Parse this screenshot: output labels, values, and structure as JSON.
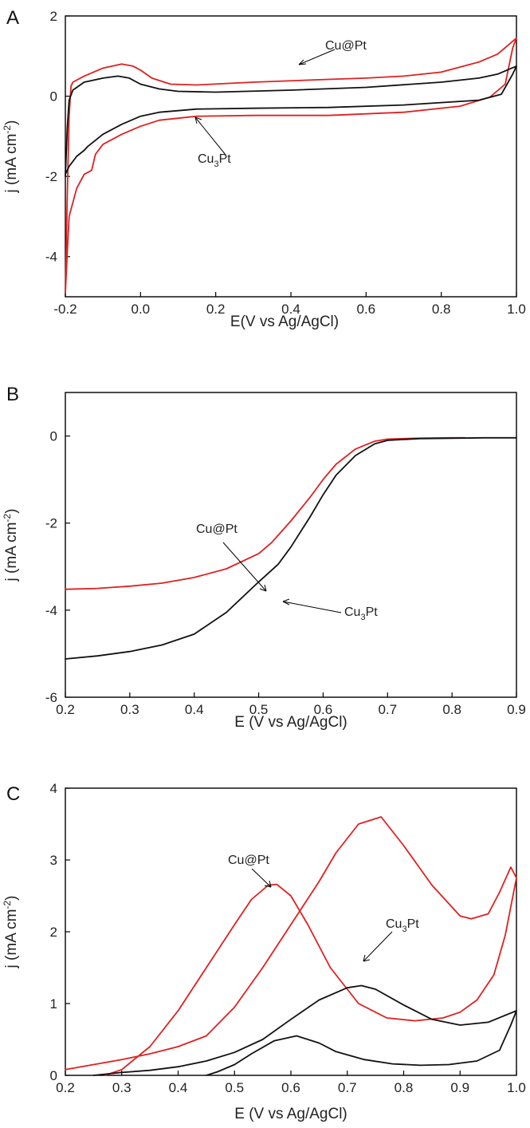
{
  "colors": {
    "Cu@Pt": "#e02020",
    "Cu3Pt": "#111111"
  },
  "chart_data": [
    {
      "type": "line",
      "panel": "A",
      "xlabel": "E(V vs Ag/AgCl)",
      "ylabel": "j (mA cm⁻²)",
      "xlim": [
        -0.2,
        1.0
      ],
      "ylim": [
        -5,
        2
      ],
      "xticks": [
        "-0.2",
        "0.0",
        "0.2",
        "0.4",
        "0.6",
        "0.8",
        "1.0"
      ],
      "xtick_values": [
        -0.2,
        0.0,
        0.2,
        0.4,
        0.6,
        0.8,
        1.0
      ],
      "yticks": [
        "-4",
        "-2",
        "0",
        "2"
      ],
      "ytick_values": [
        -4,
        -2,
        0,
        2
      ],
      "annotations": [
        {
          "text": "Cu@Pt",
          "series": "Cu@Pt",
          "at": [
            0.45,
            0.43
          ],
          "text_at": [
            0.62,
            1.32
          ]
        },
        {
          "text_main": "Cu",
          "text_sub": "3",
          "text_tail": "Pt",
          "series": "Cu3Pt",
          "at": [
            0.14,
            -0.3
          ],
          "text_at": [
            0.25,
            -1.35
          ]
        }
      ],
      "series": [
        {
          "name": "Cu@Pt",
          "color": "#e02020",
          "x": [
            -0.2,
            -0.195,
            -0.19,
            -0.185,
            -0.18,
            -0.15,
            -0.1,
            -0.05,
            -0.02,
            0.0,
            0.03,
            0.08,
            0.15,
            0.3,
            0.5,
            0.6,
            0.7,
            0.8,
            0.9,
            0.95,
            1.0,
            0.99,
            0.97,
            0.93,
            0.85,
            0.7,
            0.5,
            0.3,
            0.15,
            0.05,
            0.0,
            -0.05,
            -0.1,
            -0.12,
            -0.13,
            -0.15,
            -0.17,
            -0.19,
            -0.195,
            -0.2
          ],
          "y": [
            -4.9,
            -2.5,
            -0.5,
            0.25,
            0.35,
            0.5,
            0.7,
            0.8,
            0.75,
            0.65,
            0.45,
            0.3,
            0.28,
            0.35,
            0.42,
            0.45,
            0.5,
            0.6,
            0.85,
            1.05,
            1.45,
            1.2,
            0.3,
            -0.02,
            -0.25,
            -0.4,
            -0.48,
            -0.48,
            -0.5,
            -0.6,
            -0.75,
            -0.95,
            -1.2,
            -1.45,
            -1.85,
            -1.95,
            -2.3,
            -3.0,
            -3.9,
            -4.9
          ]
        },
        {
          "name": "Cu3Pt",
          "color": "#111111",
          "x": [
            -0.2,
            -0.195,
            -0.19,
            -0.18,
            -0.15,
            -0.1,
            -0.06,
            -0.03,
            0.0,
            0.05,
            0.1,
            0.2,
            0.4,
            0.6,
            0.8,
            0.9,
            0.95,
            1.0,
            0.99,
            0.96,
            0.9,
            0.7,
            0.5,
            0.3,
            0.15,
            0.05,
            0.0,
            -0.05,
            -0.1,
            -0.12,
            -0.14,
            -0.15,
            -0.17,
            -0.19,
            -0.2
          ],
          "y": [
            -2.0,
            -0.8,
            -0.1,
            0.15,
            0.35,
            0.45,
            0.5,
            0.45,
            0.3,
            0.18,
            0.12,
            0.1,
            0.15,
            0.22,
            0.35,
            0.45,
            0.55,
            0.75,
            0.55,
            0.05,
            -0.1,
            -0.22,
            -0.28,
            -0.3,
            -0.32,
            -0.4,
            -0.5,
            -0.7,
            -0.95,
            -1.1,
            -1.25,
            -1.35,
            -1.5,
            -1.75,
            -1.95
          ]
        }
      ]
    },
    {
      "type": "line",
      "panel": "B",
      "xlabel": "E (V vs Ag/AgCl)",
      "ylabel": "j (mA cm⁻²)",
      "xlim": [
        0.2,
        0.9
      ],
      "ylim": [
        -6,
        1
      ],
      "xticks": [
        "0.2",
        "0.3",
        "0.4",
        "0.5",
        "0.6",
        "0.7",
        "0.8",
        "0.9"
      ],
      "xtick_values": [
        0.2,
        0.3,
        0.4,
        0.5,
        0.6,
        0.7,
        0.8,
        0.9
      ],
      "yticks": [
        "-6",
        "-4",
        "-2",
        "0"
      ],
      "ytick_values": [
        -6,
        -4,
        -2,
        0
      ],
      "annotations": [
        {
          "text": "Cu@Pt",
          "series": "Cu@Pt",
          "at": [
            0.52,
            -2.45
          ],
          "text_at": [
            0.43,
            -1.55
          ]
        },
        {
          "text_main": "Cu",
          "text_sub": "3",
          "text_tail": "Pt",
          "series": "Cu3Pt",
          "at": [
            0.545,
            -2.85
          ],
          "text_at": [
            0.63,
            -3.4
          ]
        }
      ],
      "series": [
        {
          "name": "Cu@Pt",
          "color": "#e02020",
          "x": [
            0.2,
            0.25,
            0.3,
            0.35,
            0.4,
            0.45,
            0.5,
            0.52,
            0.55,
            0.58,
            0.6,
            0.62,
            0.65,
            0.68,
            0.7,
            0.75,
            0.8,
            0.82
          ],
          "y": [
            -3.52,
            -3.5,
            -3.45,
            -3.38,
            -3.25,
            -3.05,
            -2.7,
            -2.45,
            -1.95,
            -1.4,
            -1.0,
            -0.65,
            -0.3,
            -0.12,
            -0.07,
            -0.05,
            -0.04,
            -0.04
          ]
        },
        {
          "name": "Cu3Pt",
          "color": "#111111",
          "x": [
            0.2,
            0.25,
            0.3,
            0.35,
            0.4,
            0.45,
            0.5,
            0.53,
            0.55,
            0.58,
            0.6,
            0.62,
            0.65,
            0.68,
            0.7,
            0.75,
            0.8,
            0.85,
            0.9
          ],
          "y": [
            -5.12,
            -5.05,
            -4.95,
            -4.8,
            -4.55,
            -4.05,
            -3.35,
            -2.95,
            -2.55,
            -1.85,
            -1.35,
            -0.9,
            -0.45,
            -0.18,
            -0.1,
            -0.06,
            -0.05,
            -0.04,
            -0.04
          ]
        }
      ]
    },
    {
      "type": "line",
      "panel": "C",
      "xlabel": "E (V vs Ag/AgCl)",
      "ylabel": "j (mA cm⁻²)",
      "xlim": [
        0.2,
        1.0
      ],
      "ylim": [
        0,
        4
      ],
      "xticks": [
        "0.2",
        "0.3",
        "0.4",
        "0.5",
        "0.6",
        "0.7",
        "0.8",
        "0.9",
        "1.0"
      ],
      "xtick_values": [
        0.2,
        0.3,
        0.4,
        0.5,
        0.6,
        0.7,
        0.8,
        0.9,
        1.0
      ],
      "yticks": [
        "0",
        "1",
        "2",
        "3",
        "4"
      ],
      "ytick_values": [
        0,
        1,
        2,
        3,
        4
      ],
      "annotations": [
        {
          "text": "Cu@Pt",
          "series": "Cu@Pt",
          "at": [
            0.56,
            2.6
          ],
          "text_at": [
            0.5,
            3.25
          ]
        },
        {
          "text_main": "Cu",
          "text_sub": "3",
          "text_tail": "Pt",
          "series": "Cu3Pt",
          "at": [
            0.72,
            1.25
          ],
          "text_at": [
            0.78,
            2.05
          ]
        }
      ],
      "series": [
        {
          "name": "Cu@Pt",
          "color": "#e02020",
          "x": [
            0.27,
            0.3,
            0.35,
            0.4,
            0.45,
            0.5,
            0.53,
            0.56,
            0.575,
            0.6,
            0.63,
            0.67,
            0.72,
            0.77,
            0.82,
            0.87,
            0.9,
            0.93,
            0.96,
            0.98,
            1.0,
            0.99,
            0.97,
            0.95,
            0.92,
            0.9,
            0.85,
            0.8,
            0.76,
            0.72,
            0.68,
            0.65,
            0.6,
            0.55,
            0.5,
            0.45,
            0.4,
            0.35,
            0.3,
            0.25,
            0.2
          ],
          "y": [
            0.0,
            0.08,
            0.4,
            0.9,
            1.5,
            2.1,
            2.45,
            2.65,
            2.66,
            2.5,
            2.1,
            1.5,
            1.0,
            0.8,
            0.76,
            0.8,
            0.88,
            1.05,
            1.4,
            1.95,
            2.75,
            2.9,
            2.55,
            2.25,
            2.18,
            2.22,
            2.65,
            3.2,
            3.6,
            3.5,
            3.1,
            2.7,
            2.1,
            1.5,
            0.95,
            0.55,
            0.4,
            0.3,
            0.22,
            0.15,
            0.08
          ]
        },
        {
          "name": "Cu3Pt",
          "color": "#111111",
          "x": [
            0.25,
            0.3,
            0.35,
            0.4,
            0.45,
            0.5,
            0.55,
            0.6,
            0.65,
            0.7,
            0.725,
            0.75,
            0.8,
            0.85,
            0.9,
            0.95,
            1.0,
            0.99,
            0.97,
            0.93,
            0.88,
            0.83,
            0.78,
            0.73,
            0.68,
            0.65,
            0.61,
            0.57,
            0.53,
            0.5,
            0.47,
            0.45
          ],
          "y": [
            0.0,
            0.04,
            0.07,
            0.12,
            0.2,
            0.32,
            0.5,
            0.78,
            1.05,
            1.22,
            1.25,
            1.2,
            0.98,
            0.78,
            0.7,
            0.74,
            0.9,
            0.7,
            0.35,
            0.2,
            0.15,
            0.14,
            0.16,
            0.22,
            0.33,
            0.45,
            0.55,
            0.48,
            0.3,
            0.15,
            0.05,
            0.0
          ]
        }
      ]
    }
  ]
}
